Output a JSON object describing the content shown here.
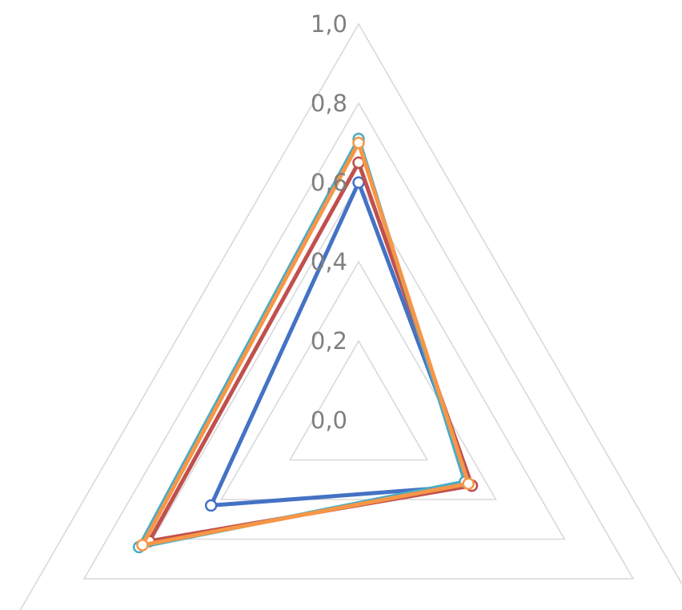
{
  "chart_data": {
    "type": "radar",
    "axes_count": 3,
    "r_range": [
      0.0,
      1.0
    ],
    "ticks": [
      "0,0",
      "0,2",
      "0,4",
      "0,6",
      "0,8",
      "1,0"
    ],
    "grid": true,
    "series": [
      {
        "color": "#4472c4",
        "values": [
          0.6,
          0.33,
          0.43
        ]
      },
      {
        "color": "#c0504d",
        "values": [
          0.65,
          0.33,
          0.61
        ]
      },
      {
        "color": "#4bacc6",
        "values": [
          0.71,
          0.31,
          0.64
        ]
      },
      {
        "color": "#f79646",
        "values": [
          0.7,
          0.32,
          0.63
        ]
      }
    ]
  }
}
